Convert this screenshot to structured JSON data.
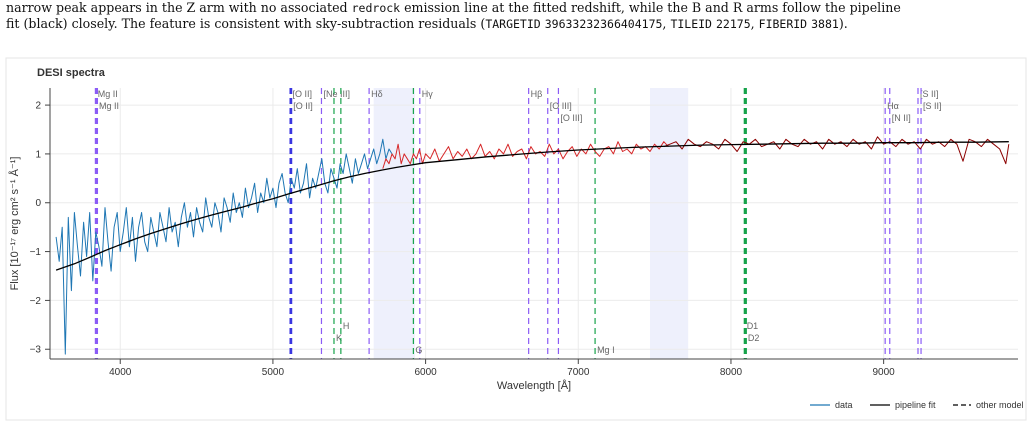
{
  "caption": {
    "line1": "narrow peak appears in the Z arm with no associated ",
    "line1_code": "redrock",
    "line1_rest": " emission line at the fitted redshift, while the B and R arms follow the pipeline",
    "line2": "fit (black) closely. The feature is consistent with sky-subtraction residuals (",
    "targetid_label": "TARGETID",
    "targetid": "39633232366404175",
    "tileid_label": "TILEID",
    "tileid": "22175",
    "fiberid_label": "FIBERID",
    "fiberid": "3881",
    "line2_end": ")."
  },
  "chart_data": {
    "type": "line",
    "title": "DESI spectra",
    "xlabel": "Wavelength [Å]",
    "ylabel": "Flux [10⁻¹⁷ erg cm² s⁻¹ Å⁻¹]",
    "xlim": [
      3540,
      9880
    ],
    "ylim": [
      -3.2,
      2.35
    ],
    "x_ticks": [
      4000,
      5000,
      6000,
      7000,
      8000,
      9000
    ],
    "x_tick_labels": [
      "4000",
      "5000",
      "6000",
      "7000",
      "8000",
      "9000"
    ],
    "y_ticks": [
      -3,
      -2,
      -1,
      0,
      1,
      2
    ],
    "y_tick_labels": [
      "−3",
      "−2",
      "−1",
      "0",
      "1",
      "2"
    ],
    "grid": true,
    "legend_position": "bottom-right",
    "legend": [
      {
        "label": "data",
        "style": "solid",
        "color": "#1f77b4"
      },
      {
        "label": "pipeline fit",
        "style": "solid",
        "color": "#000000"
      },
      {
        "label": "other model",
        "style": "dashed",
        "color": "#000000"
      }
    ],
    "shaded_regions": [
      [
        5660,
        5930
      ],
      [
        7470,
        7720
      ]
    ],
    "series": [
      {
        "arm": "B",
        "color": "#1f77b4",
        "x": [
          3580,
          3600,
          3620,
          3640,
          3660,
          3680,
          3700,
          3720,
          3740,
          3760,
          3780,
          3800,
          3820,
          3840,
          3860,
          3880,
          3900,
          3920,
          3940,
          3960,
          3980,
          4000,
          4020,
          4040,
          4060,
          4080,
          4100,
          4120,
          4140,
          4160,
          4180,
          4200,
          4220,
          4240,
          4260,
          4280,
          4300,
          4320,
          4340,
          4360,
          4380,
          4400,
          4420,
          4440,
          4460,
          4480,
          4500,
          4520,
          4540,
          4560,
          4580,
          4600,
          4620,
          4640,
          4660,
          4680,
          4700,
          4720,
          4740,
          4760,
          4780,
          4800,
          4820,
          4840,
          4860,
          4880,
          4900,
          4920,
          4940,
          4960,
          4980,
          5000,
          5020,
          5040,
          5060,
          5080,
          5100,
          5120,
          5140,
          5160,
          5180,
          5200,
          5220,
          5240,
          5260,
          5280,
          5300,
          5320,
          5340,
          5360,
          5380,
          5400,
          5420,
          5440,
          5460,
          5480,
          5500,
          5520,
          5540,
          5560,
          5580,
          5600,
          5620,
          5640,
          5660,
          5680,
          5700,
          5720,
          5740,
          5760,
          5780
        ],
        "values": [
          -0.7,
          -1.2,
          -0.5,
          -3.1,
          -0.3,
          -1.8,
          -0.2,
          -0.9,
          -1.5,
          -0.4,
          -1.1,
          -0.2,
          -1.6,
          -0.6,
          -0.9,
          -1.3,
          -0.1,
          -0.8,
          -1.4,
          -0.5,
          -0.2,
          -1.0,
          -0.6,
          -0.1,
          -0.9,
          -0.3,
          -1.2,
          -0.5,
          -0.2,
          -0.8,
          -1.0,
          -0.3,
          -0.6,
          -0.9,
          -0.2,
          -0.5,
          -0.8,
          -0.1,
          -0.6,
          -0.4,
          -0.9,
          -0.3,
          0.0,
          -0.5,
          -0.2,
          -0.7,
          -0.1,
          -0.4,
          -0.6,
          0.1,
          -0.3,
          -0.5,
          0.0,
          -0.2,
          -0.6,
          0.1,
          -0.1,
          -0.4,
          0.2,
          -0.2,
          0.0,
          -0.3,
          0.3,
          -0.1,
          0.1,
          0.4,
          -0.2,
          0.2,
          0.0,
          0.5,
          0.1,
          0.3,
          -0.1,
          0.4,
          0.6,
          0.2,
          0.0,
          0.5,
          0.3,
          0.7,
          0.2,
          0.4,
          0.8,
          0.1,
          0.5,
          0.3,
          0.6,
          0.9,
          0.4,
          0.2,
          0.7,
          0.5,
          0.3,
          0.8,
          0.6,
          1.0,
          0.7,
          0.4,
          0.9,
          0.6,
          0.8,
          1.0,
          0.7,
          0.9,
          1.1,
          0.8,
          1.0,
          1.3,
          0.9,
          1.1,
          1.0
        ]
      },
      {
        "arm": "R",
        "color": "#d62728",
        "x": [
          5720,
          5740,
          5760,
          5780,
          5800,
          5820,
          5840,
          5860,
          5880,
          5900,
          5920,
          5940,
          5960,
          5980,
          6000,
          6030,
          6060,
          6090,
          6120,
          6150,
          6180,
          6210,
          6240,
          6270,
          6300,
          6330,
          6360,
          6390,
          6420,
          6450,
          6480,
          6510,
          6540,
          6570,
          6600,
          6630,
          6660,
          6690,
          6720,
          6750,
          6780,
          6810,
          6840,
          6870,
          6900,
          6930,
          6960,
          6990,
          7020,
          7050,
          7080,
          7110,
          7140,
          7170,
          7200,
          7230,
          7260,
          7290,
          7320,
          7350,
          7380,
          7410,
          7440,
          7470,
          7500,
          7530,
          7560,
          7590
        ],
        "values": [
          0.7,
          0.9,
          0.8,
          1.0,
          0.9,
          1.2,
          0.8,
          1.0,
          0.9,
          0.8,
          1.0,
          0.9,
          1.1,
          0.8,
          1.0,
          0.9,
          1.1,
          0.85,
          1.0,
          1.15,
          0.9,
          1.05,
          0.95,
          1.1,
          0.9,
          1.0,
          1.2,
          0.95,
          1.05,
          0.9,
          1.1,
          1.0,
          1.2,
          0.95,
          1.05,
          1.1,
          0.9,
          1.15,
          1.0,
          1.05,
          0.95,
          1.2,
          1.0,
          1.1,
          0.9,
          1.05,
          1.15,
          0.95,
          1.1,
          1.0,
          1.2,
          1.05,
          0.95,
          1.1,
          1.15,
          1.0,
          1.25,
          1.05,
          1.1,
          1.0,
          1.2,
          1.1,
          1.15,
          1.05,
          1.2,
          1.1,
          1.25,
          1.15
        ]
      },
      {
        "arm": "Z",
        "color": "#8c0000",
        "x": [
          7560,
          7600,
          7640,
          7680,
          7720,
          7760,
          7800,
          7840,
          7880,
          7920,
          7960,
          8000,
          8040,
          8080,
          8120,
          8160,
          8200,
          8240,
          8280,
          8320,
          8360,
          8400,
          8440,
          8480,
          8520,
          8560,
          8600,
          8640,
          8680,
          8720,
          8760,
          8800,
          8840,
          8880,
          8920,
          8960,
          9000,
          9040,
          9080,
          9120,
          9160,
          9200,
          9240,
          9280,
          9320,
          9360,
          9400,
          9440,
          9480,
          9520,
          9560,
          9600,
          9640,
          9680,
          9720,
          9760,
          9800,
          9820
        ],
        "values": [
          1.15,
          1.2,
          1.25,
          1.1,
          1.3,
          1.2,
          1.15,
          1.25,
          1.2,
          1.1,
          1.3,
          1.2,
          1.05,
          1.25,
          1.2,
          1.3,
          1.15,
          1.2,
          1.25,
          1.1,
          1.3,
          1.2,
          1.15,
          1.3,
          1.2,
          1.25,
          1.1,
          1.3,
          1.2,
          1.25,
          1.15,
          1.3,
          1.2,
          1.25,
          1.1,
          1.35,
          1.2,
          1.25,
          1.15,
          1.3,
          1.2,
          1.25,
          1.1,
          1.3,
          1.2,
          1.25,
          1.15,
          1.3,
          1.2,
          0.85,
          1.3,
          1.25,
          1.15,
          1.3,
          1.2,
          1.1,
          0.8,
          1.2
        ]
      },
      {
        "name": "pipeline fit",
        "color": "#000000",
        "x": [
          3580,
          3700,
          3800,
          3900,
          4000,
          4100,
          4200,
          4300,
          4400,
          4500,
          4600,
          4700,
          4800,
          4900,
          5000,
          5100,
          5200,
          5300,
          5400,
          5500,
          5600,
          5700,
          5800,
          5900,
          6000,
          6200,
          6400,
          6600,
          6800,
          7000,
          7200,
          7400,
          7600,
          7800,
          8000,
          8200,
          8400,
          8600,
          8800,
          9000,
          9200,
          9400,
          9600,
          9820
        ],
        "values": [
          -1.38,
          -1.25,
          -1.12,
          -0.98,
          -0.86,
          -0.74,
          -0.63,
          -0.53,
          -0.43,
          -0.34,
          -0.25,
          -0.17,
          -0.09,
          0.0,
          0.08,
          0.18,
          0.27,
          0.36,
          0.45,
          0.53,
          0.6,
          0.66,
          0.72,
          0.77,
          0.82,
          0.88,
          0.94,
          0.99,
          1.04,
          1.08,
          1.11,
          1.14,
          1.16,
          1.18,
          1.19,
          1.2,
          1.21,
          1.22,
          1.22,
          1.23,
          1.23,
          1.24,
          1.24,
          1.25
        ]
      }
    ],
    "emission_lines": [
      {
        "label": "Mg II",
        "wavelength": 3840,
        "color": "#8b5cf6",
        "bold": true,
        "label_pos": "top",
        "row": 0
      },
      {
        "label": "Mg II",
        "wavelength": 3848,
        "color": "#8b5cf6",
        "bold": true,
        "label_pos": "top",
        "row": 1
      },
      {
        "label": "[O II]",
        "wavelength": 5115,
        "color": "#3b36e0",
        "bold": true,
        "label_pos": "top",
        "row": 0
      },
      {
        "label": "[O II]",
        "wavelength": 5120,
        "color": "#3b36e0",
        "bold": true,
        "label_pos": "top",
        "row": 1
      },
      {
        "label": "[Ne III]",
        "wavelength": 5318,
        "color": "#8b5cf6",
        "bold": false,
        "label_pos": "top",
        "row": 0
      },
      {
        "label": "Hδ",
        "wavelength": 5630,
        "color": "#8b5cf6",
        "bold": false,
        "label_pos": "top",
        "row": 0
      },
      {
        "label": "Hγ",
        "wavelength": 5962,
        "color": "#8b5cf6",
        "bold": false,
        "label_pos": "top",
        "row": 0
      },
      {
        "label": "Hβ",
        "wavelength": 6675,
        "color": "#8b5cf6",
        "bold": false,
        "label_pos": "top",
        "row": 0
      },
      {
        "label": "[O III]",
        "wavelength": 6800,
        "color": "#8b5cf6",
        "bold": false,
        "label_pos": "top",
        "row": 1
      },
      {
        "label": "[O III]",
        "wavelength": 6870,
        "color": "#8b5cf6",
        "bold": false,
        "label_pos": "top",
        "row": 2
      },
      {
        "label": "Hα",
        "wavelength": 9010,
        "color": "#8b5cf6",
        "bold": false,
        "label_pos": "top",
        "row": 1
      },
      {
        "label": "[N II]",
        "wavelength": 9040,
        "color": "#8b5cf6",
        "bold": false,
        "label_pos": "top",
        "row": 2
      },
      {
        "label": "[S II]",
        "wavelength": 9225,
        "color": "#8b5cf6",
        "bold": false,
        "label_pos": "top",
        "row": 0
      },
      {
        "label": "[S II]",
        "wavelength": 9245,
        "color": "#8b5cf6",
        "bold": false,
        "label_pos": "top",
        "row": 1
      },
      {
        "label": "K",
        "wavelength": 5400,
        "color": "#16a34a",
        "bold": false,
        "label_pos": "bottom",
        "row": 1
      },
      {
        "label": "H",
        "wavelength": 5445,
        "color": "#16a34a",
        "bold": false,
        "label_pos": "bottom",
        "row": 0
      },
      {
        "label": "G",
        "wavelength": 5920,
        "color": "#16a34a",
        "bold": false,
        "label_pos": "bottom",
        "row": 2
      },
      {
        "label": "Mg I",
        "wavelength": 7110,
        "color": "#16a34a",
        "bold": false,
        "label_pos": "bottom",
        "row": 2
      },
      {
        "label": "D1",
        "wavelength": 8090,
        "color": "#16a34a",
        "bold": true,
        "label_pos": "bottom",
        "row": 0
      },
      {
        "label": "D2",
        "wavelength": 8098,
        "color": "#16a34a",
        "bold": true,
        "label_pos": "bottom",
        "row": 1
      }
    ]
  }
}
